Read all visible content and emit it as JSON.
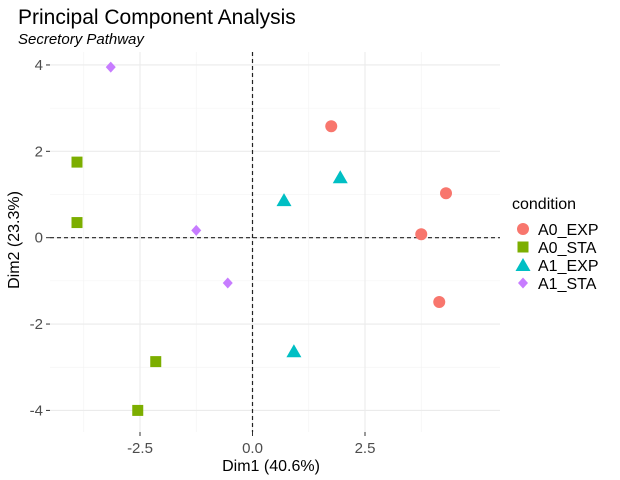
{
  "chart_data": {
    "type": "scatter",
    "title": "Principal Component Analysis",
    "subtitle": "Secretory Pathway",
    "xlabel": "Dim1 (40.6%)",
    "ylabel": "Dim2 (23.3%)",
    "xlim": [
      -4.5,
      5.5
    ],
    "ylim": [
      -4.5,
      4.3
    ],
    "x_ticks": [
      -2.5,
      0.0,
      2.5
    ],
    "x_tick_labels": [
      "-2.5",
      "0.0",
      "2.5"
    ],
    "y_ticks": [
      -4,
      -2,
      0,
      2,
      4
    ],
    "y_tick_labels": [
      "-4",
      "-2",
      "0",
      "2",
      "4"
    ],
    "grid": true,
    "reference_lines": {
      "x": 0,
      "y": 0,
      "style": "dashed"
    },
    "legend": {
      "title": "condition",
      "position": "right"
    },
    "series": [
      {
        "name": "A0_EXP",
        "color": "#F8766D",
        "shape": "circle",
        "points": [
          [
            1.75,
            2.58
          ],
          [
            4.3,
            1.03
          ],
          [
            3.75,
            0.08
          ],
          [
            4.15,
            -1.49
          ]
        ]
      },
      {
        "name": "A0_STA",
        "color": "#7CAE00",
        "shape": "square",
        "points": [
          [
            -3.9,
            1.75
          ],
          [
            -3.9,
            0.35
          ],
          [
            -2.15,
            -2.87
          ],
          [
            -2.55,
            -4.0
          ]
        ]
      },
      {
        "name": "A1_EXP",
        "color": "#00BFC4",
        "shape": "triangle",
        "points": [
          [
            1.95,
            1.4
          ],
          [
            0.7,
            0.87
          ],
          [
            0.92,
            -2.63
          ]
        ]
      },
      {
        "name": "A1_STA",
        "color": "#C77CFF",
        "shape": "diamond",
        "points": [
          [
            -3.15,
            3.95
          ],
          [
            -1.25,
            0.17
          ],
          [
            -0.55,
            -1.05
          ]
        ]
      }
    ]
  }
}
